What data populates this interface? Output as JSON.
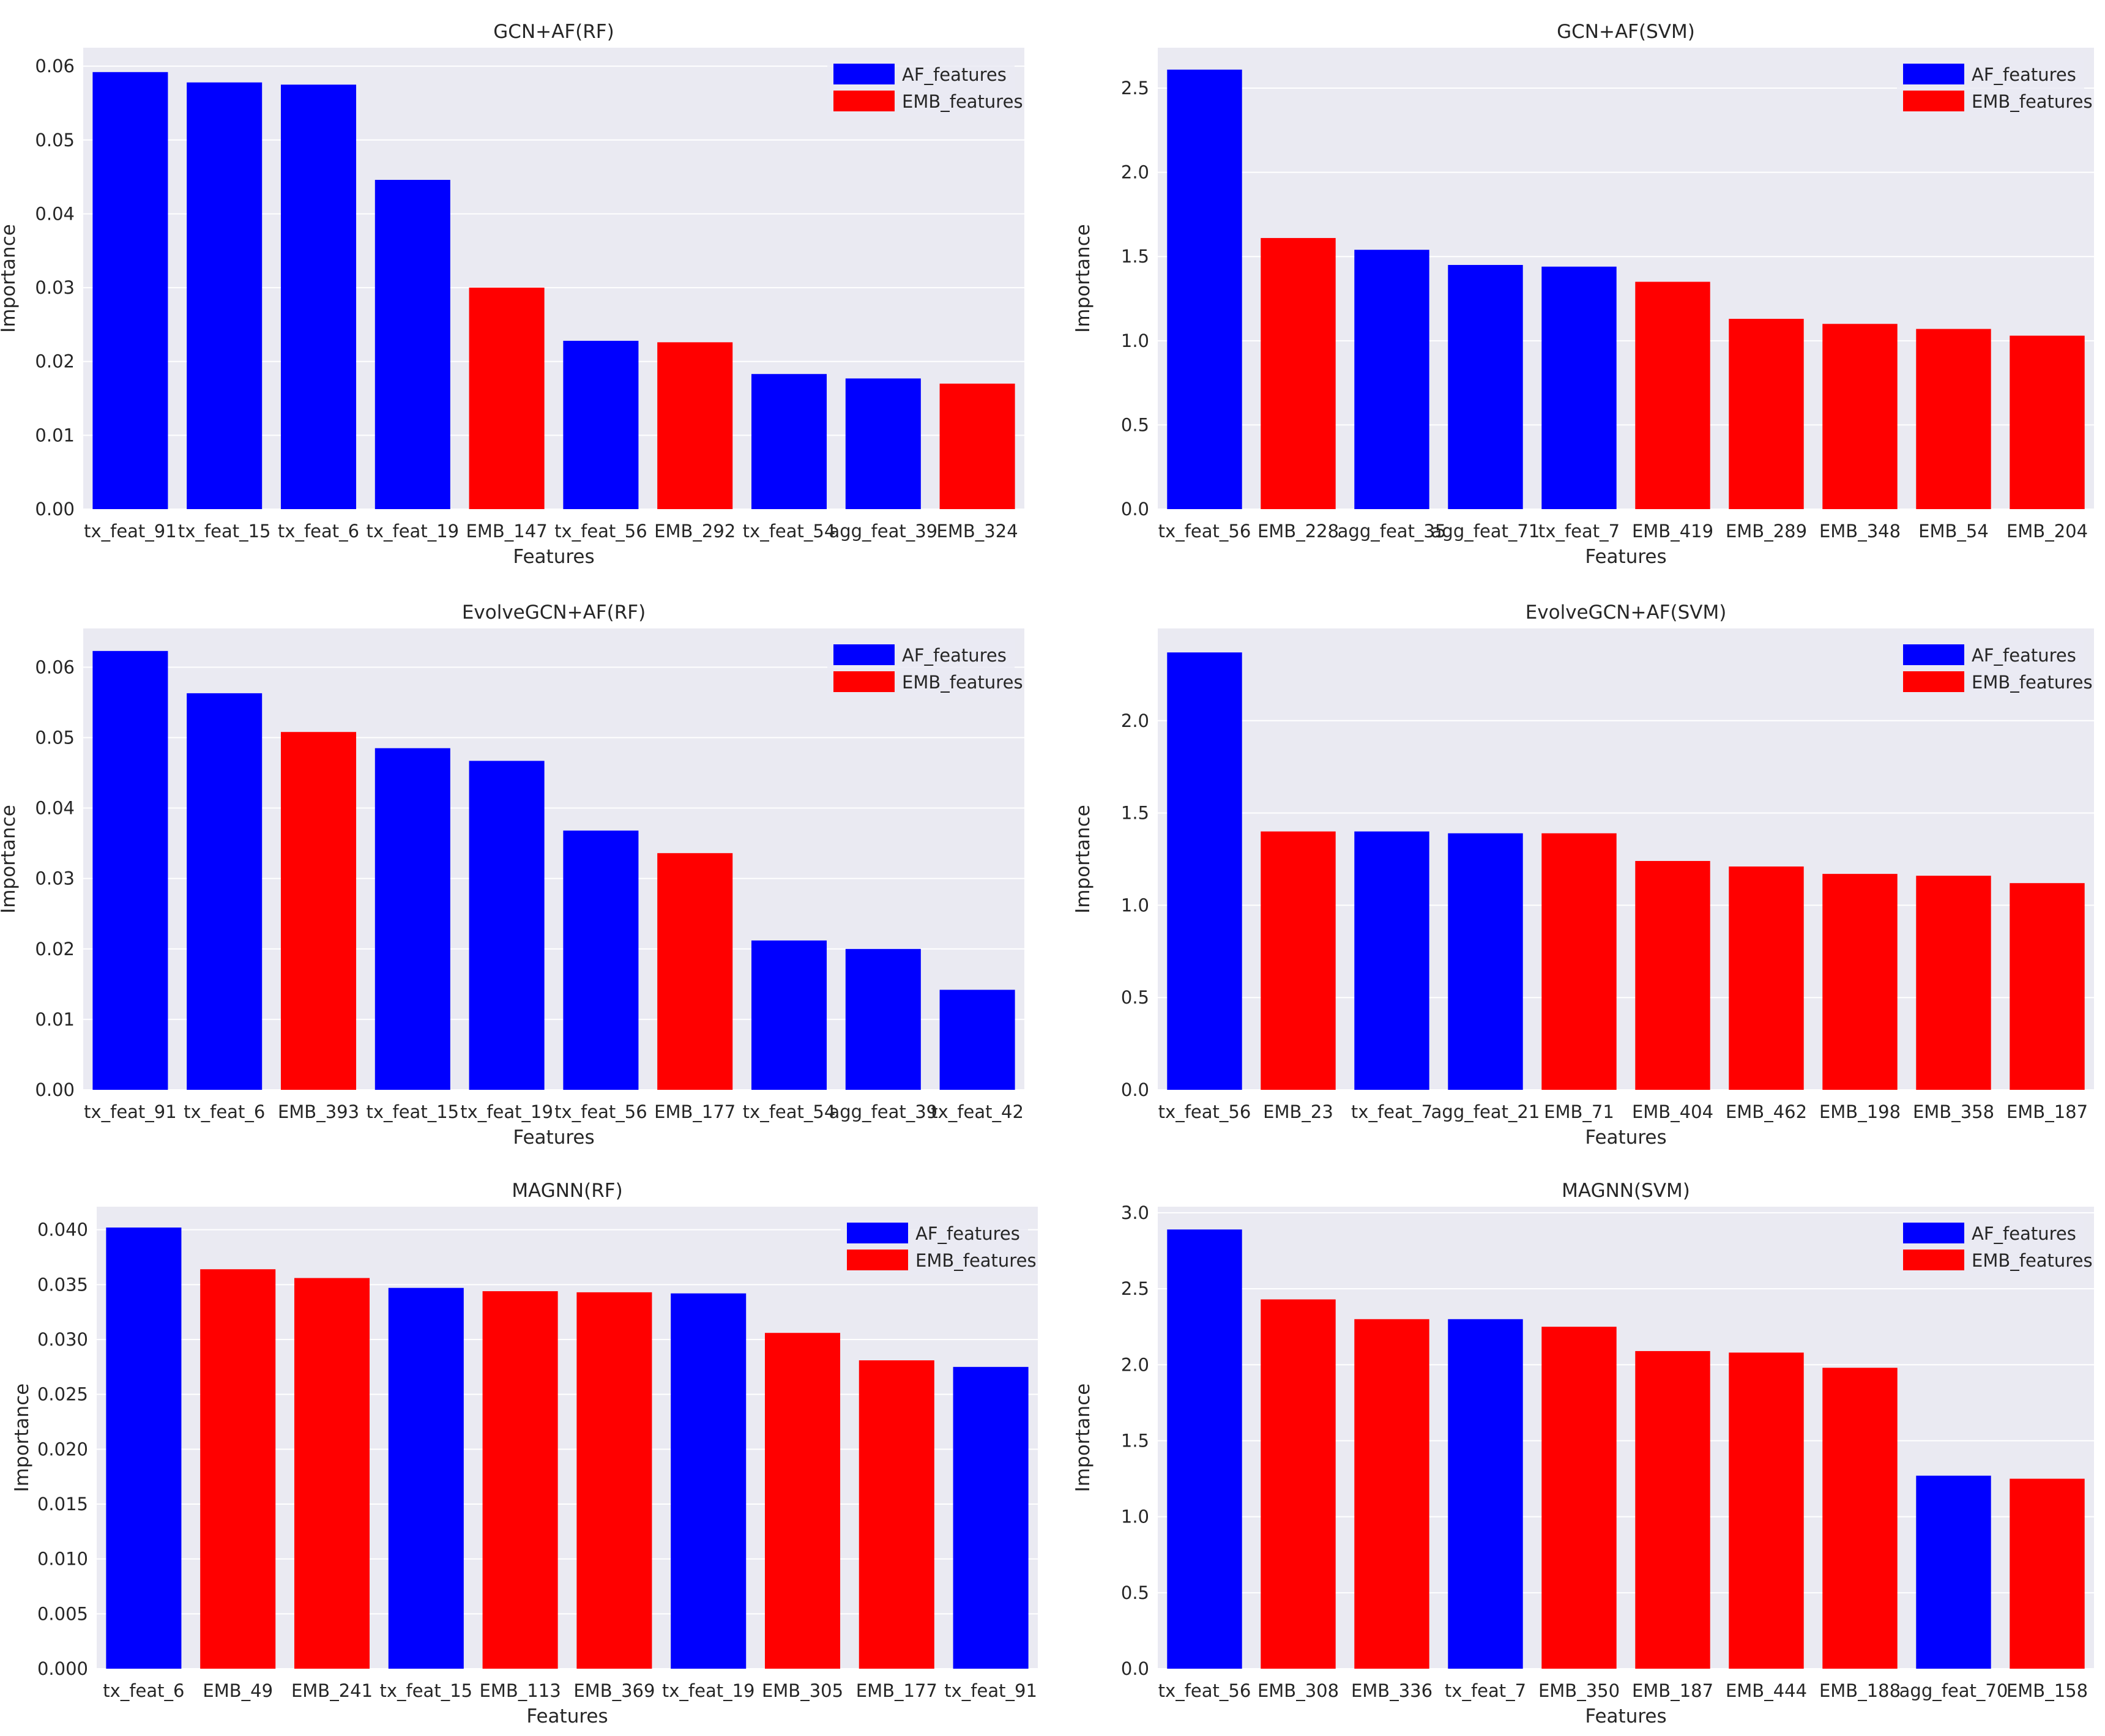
{
  "legend_labels": {
    "af": "AF_features",
    "emb": "EMB_features"
  },
  "colors": {
    "af_features": "#0000ff",
    "emb_features": "#ff0000",
    "plot_background": "#eaeaf2",
    "grid": "#ffffff"
  },
  "chart_data": [
    {
      "type": "bar",
      "title": "GCN+AF(RF)",
      "xlabel": "Features",
      "ylabel": "Importance",
      "ylim": [
        0,
        0.0625
      ],
      "yticks": [
        "0.00",
        "0.01",
        "0.02",
        "0.03",
        "0.04",
        "0.05",
        "0.06"
      ],
      "grid": true,
      "legend_position": "top-right",
      "categories": [
        "tx_feat_91",
        "tx_feat_15",
        "tx_feat_6",
        "tx_feat_19",
        "EMB_147",
        "tx_feat_56",
        "EMB_292",
        "tx_feat_54",
        "agg_feat_39",
        "EMB_324"
      ],
      "values": [
        0.0592,
        0.0578,
        0.0575,
        0.0446,
        0.03,
        0.0228,
        0.0226,
        0.0183,
        0.0177,
        0.017
      ],
      "groups": [
        "AF",
        "AF",
        "AF",
        "AF",
        "EMB",
        "AF",
        "EMB",
        "AF",
        "AF",
        "EMB"
      ]
    },
    {
      "type": "bar",
      "title": "GCN+AF(SVM)",
      "xlabel": "Features",
      "ylabel": "Importance",
      "ylim": [
        0,
        2.74
      ],
      "yticks": [
        "0.0",
        "0.5",
        "1.0",
        "1.5",
        "2.0",
        "2.5"
      ],
      "grid": true,
      "legend_position": "top-right",
      "categories": [
        "tx_feat_56",
        "EMB_228",
        "agg_feat_35",
        "agg_feat_71",
        "tx_feat_7",
        "EMB_419",
        "EMB_289",
        "EMB_348",
        "EMB_54",
        "EMB_204"
      ],
      "values": [
        2.61,
        1.61,
        1.54,
        1.45,
        1.44,
        1.35,
        1.13,
        1.1,
        1.07,
        1.03
      ],
      "groups": [
        "AF",
        "EMB",
        "AF",
        "AF",
        "AF",
        "EMB",
        "EMB",
        "EMB",
        "EMB",
        "EMB"
      ]
    },
    {
      "type": "bar",
      "title": "EvolveGCN+AF(RF)",
      "xlabel": "Features",
      "ylabel": "Importance",
      "ylim": [
        0,
        0.0655
      ],
      "yticks": [
        "0.00",
        "0.01",
        "0.02",
        "0.03",
        "0.04",
        "0.05",
        "0.06"
      ],
      "grid": true,
      "legend_position": "top-right",
      "categories": [
        "tx_feat_91",
        "tx_feat_6",
        "EMB_393",
        "tx_feat_15",
        "tx_feat_19",
        "tx_feat_56",
        "EMB_177",
        "tx_feat_54",
        "agg_feat_39",
        "tx_feat_42"
      ],
      "values": [
        0.0623,
        0.0563,
        0.0508,
        0.0485,
        0.0467,
        0.0368,
        0.0336,
        0.0212,
        0.02,
        0.0142
      ],
      "groups": [
        "AF",
        "AF",
        "EMB",
        "AF",
        "AF",
        "AF",
        "EMB",
        "AF",
        "AF",
        "AF"
      ]
    },
    {
      "type": "bar",
      "title": "EvolveGCN+AF(SVM)",
      "xlabel": "Features",
      "ylabel": "Importance",
      "ylim": [
        0,
        2.5
      ],
      "yticks": [
        "0.0",
        "0.5",
        "1.0",
        "1.5",
        "2.0"
      ],
      "grid": true,
      "legend_position": "top-right",
      "categories": [
        "tx_feat_56",
        "EMB_23",
        "tx_feat_7",
        "agg_feat_21",
        "EMB_71",
        "EMB_404",
        "EMB_462",
        "EMB_198",
        "EMB_358",
        "EMB_187"
      ],
      "values": [
        2.37,
        1.4,
        1.4,
        1.39,
        1.39,
        1.24,
        1.21,
        1.17,
        1.16,
        1.12
      ],
      "groups": [
        "AF",
        "EMB",
        "AF",
        "AF",
        "EMB",
        "EMB",
        "EMB",
        "EMB",
        "EMB",
        "EMB"
      ]
    },
    {
      "type": "bar",
      "title": "MAGNN(RF)",
      "xlabel": "Features",
      "ylabel": "Importance",
      "ylim": [
        0,
        0.0421
      ],
      "yticks": [
        "0.000",
        "0.005",
        "0.010",
        "0.015",
        "0.020",
        "0.025",
        "0.030",
        "0.035",
        "0.040"
      ],
      "grid": true,
      "legend_position": "top-right",
      "categories": [
        "tx_feat_6",
        "EMB_49",
        "EMB_241",
        "tx_feat_15",
        "EMB_113",
        "EMB_369",
        "tx_feat_19",
        "EMB_305",
        "EMB_177",
        "tx_feat_91"
      ],
      "values": [
        0.0402,
        0.0364,
        0.0356,
        0.0347,
        0.0344,
        0.0343,
        0.0342,
        0.0306,
        0.0281,
        0.0275
      ],
      "groups": [
        "AF",
        "EMB",
        "EMB",
        "AF",
        "EMB",
        "EMB",
        "AF",
        "EMB",
        "EMB",
        "AF"
      ]
    },
    {
      "type": "bar",
      "title": "MAGNN(SVM)",
      "xlabel": "Features",
      "ylabel": "Importance",
      "ylim": [
        0,
        3.04
      ],
      "yticks": [
        "0.0",
        "0.5",
        "1.0",
        "1.5",
        "2.0",
        "2.5",
        "3.0"
      ],
      "grid": true,
      "legend_position": "top-right",
      "categories": [
        "tx_feat_56",
        "EMB_308",
        "EMB_336",
        "tx_feat_7",
        "EMB_350",
        "EMB_187",
        "EMB_444",
        "EMB_188",
        "agg_feat_70",
        "EMB_158"
      ],
      "values": [
        2.89,
        2.43,
        2.3,
        2.3,
        2.25,
        2.09,
        2.08,
        1.98,
        1.27,
        1.25
      ],
      "groups": [
        "AF",
        "EMB",
        "EMB",
        "AF",
        "EMB",
        "EMB",
        "EMB",
        "EMB",
        "AF",
        "EMB"
      ]
    }
  ]
}
